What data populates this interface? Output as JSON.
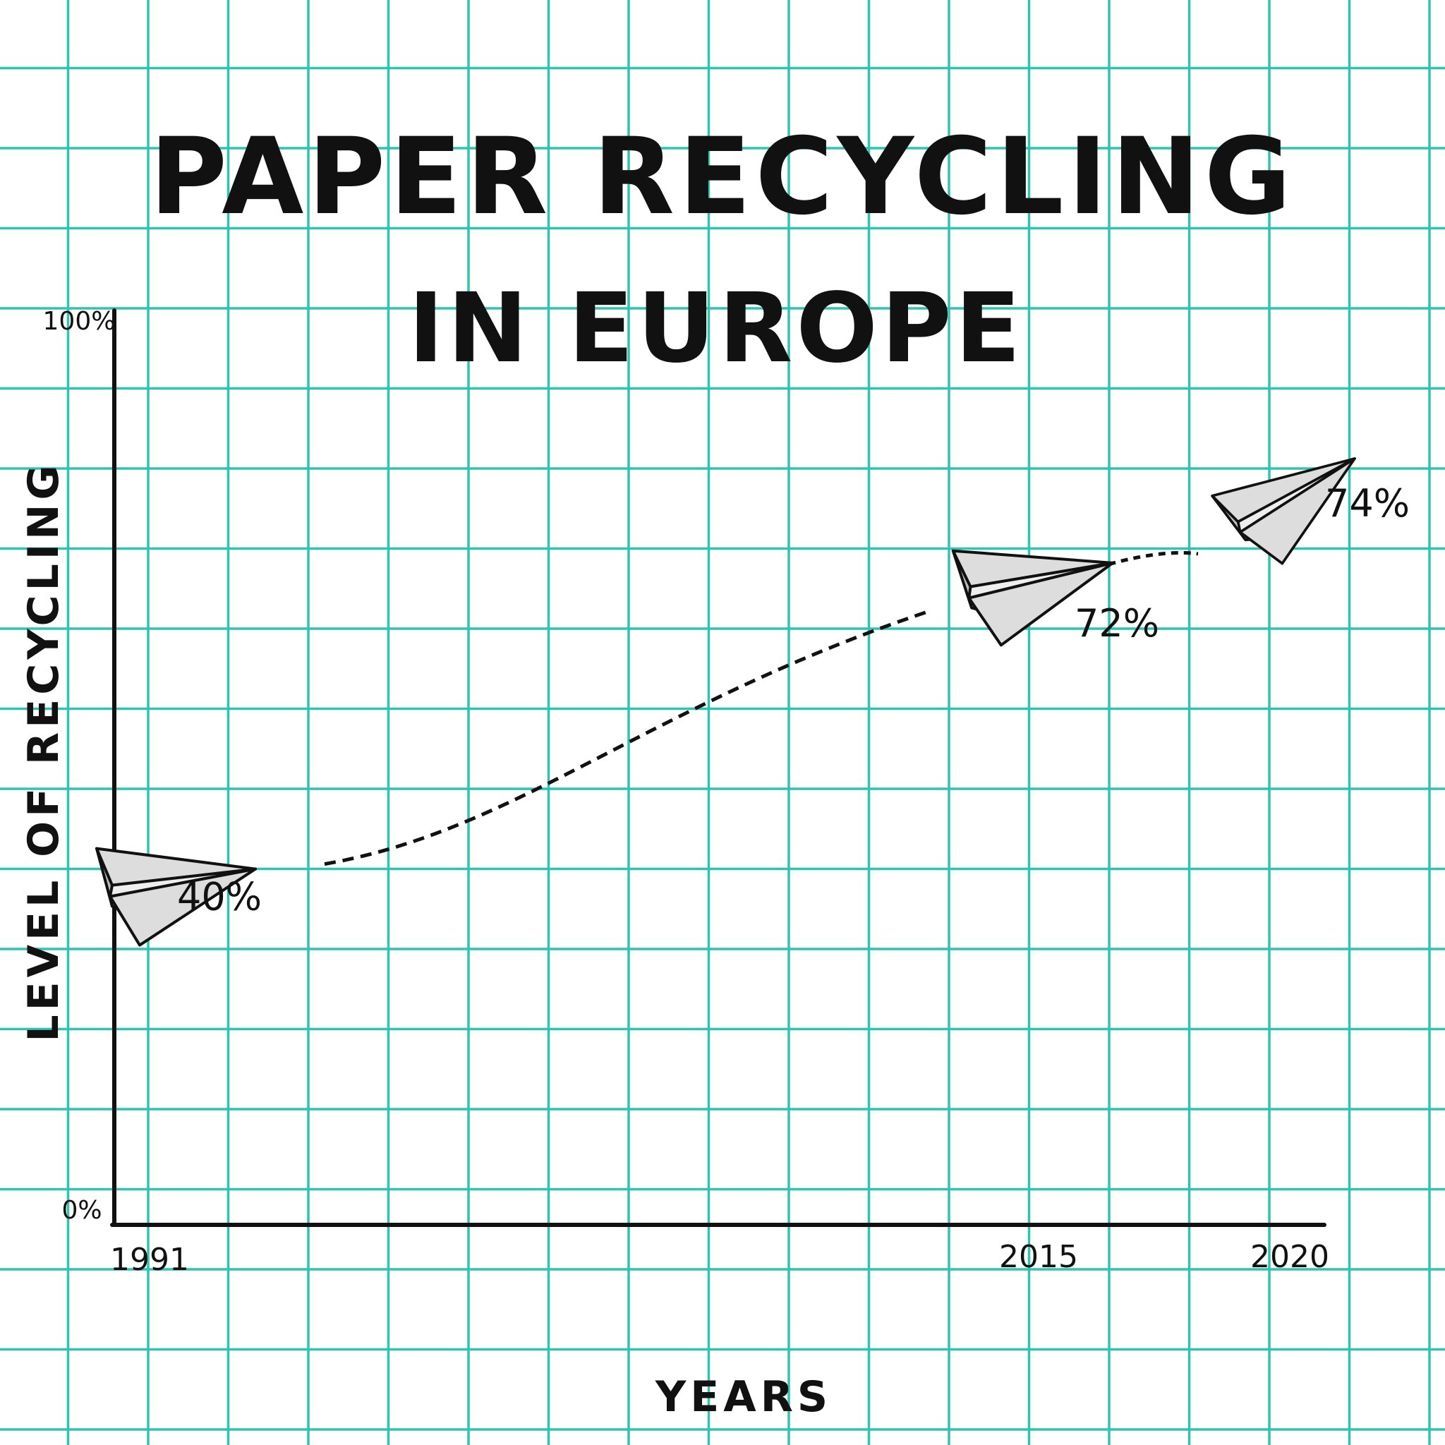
{
  "colors": {
    "grid": "#2ec4b0",
    "ink": "#111111",
    "plane_fill": "#dddddd",
    "plane_stroke": "#111111"
  },
  "chart_data": {
    "type": "line",
    "title": "PAPER RECYCLING",
    "subtitle": "IN EUROPE",
    "xlabel": "YEARS",
    "ylabel": "LEVEL OF RECYCLING",
    "ylim": [
      0,
      100
    ],
    "y_tick_labels": [
      "0%",
      "100%"
    ],
    "x_tick_labels": [
      "1991",
      "2015",
      "2020"
    ],
    "grid": true,
    "marker": "paper-plane-icon",
    "line_style": "dashed",
    "series": [
      {
        "x": [
          1991,
          2015,
          2020
        ],
        "values": [
          40,
          72,
          74
        ],
        "labels": [
          "40%",
          "72%",
          "74%"
        ]
      }
    ]
  }
}
